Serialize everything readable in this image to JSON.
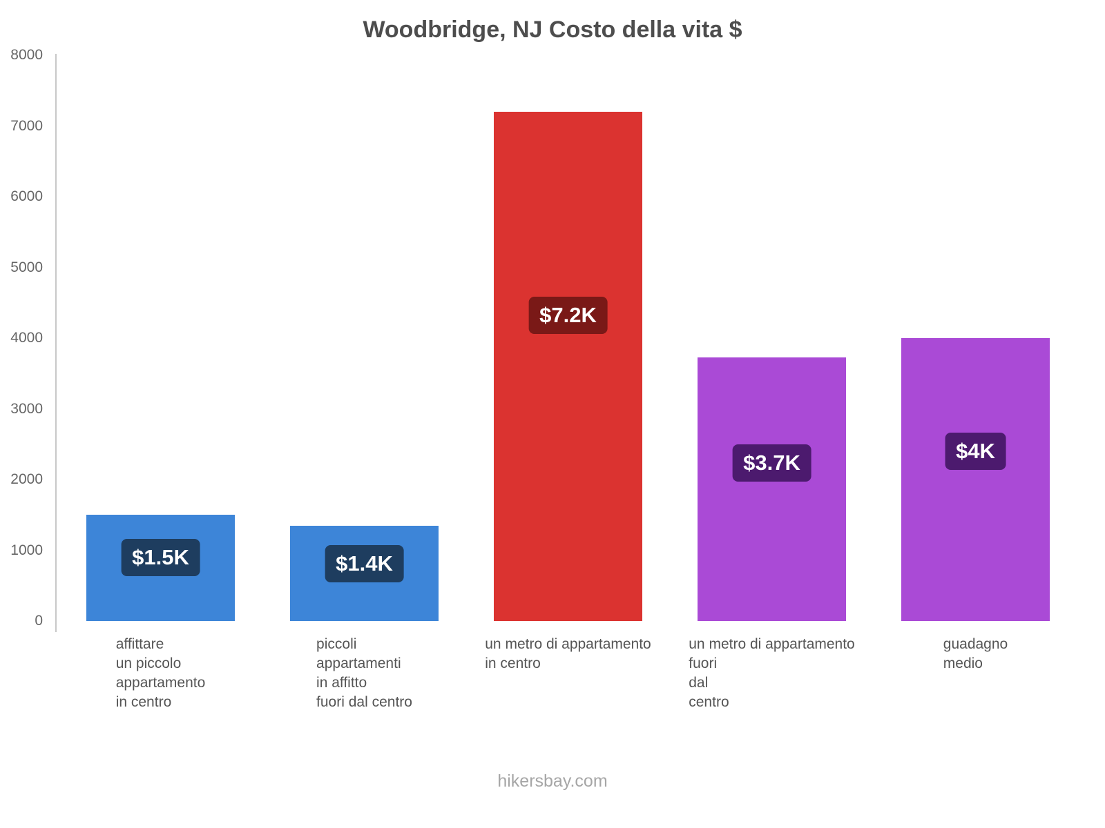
{
  "title": "Woodbridge, NJ Costo della vita $",
  "footer": "hikersbay.com",
  "chart_data": {
    "type": "bar",
    "title": "Woodbridge, NJ Costo della vita $",
    "xlabel": "",
    "ylabel": "",
    "ylim": [
      0,
      8000
    ],
    "yticks": [
      0,
      1000,
      2000,
      3000,
      4000,
      5000,
      6000,
      7000,
      8000
    ],
    "grid": false,
    "legend": false,
    "categories": [
      [
        "affittare",
        "un piccolo",
        "appartamento",
        "in centro"
      ],
      [
        "piccoli",
        "appartamenti",
        "in affitto",
        "fuori dal centro"
      ],
      [
        "un metro di appartamento",
        "in centro"
      ],
      [
        "un metro di appartamento",
        "fuori",
        "dal",
        "centro"
      ],
      [
        "guadagno",
        "medio"
      ]
    ],
    "values": [
      1500,
      1350,
      7200,
      3730,
      4000
    ],
    "value_labels": [
      "$1.5K",
      "$1.4K",
      "$7.2K",
      "$3.7K",
      "$4K"
    ],
    "bar_colors": [
      "#3d85d8",
      "#3d85d8",
      "#db3330",
      "#aa4ad6",
      "#aa4ad6"
    ],
    "label_bg_colors": [
      "#1e3d5f",
      "#1e3d5f",
      "#7a1917",
      "#4c1a6e",
      "#4c1a6e"
    ],
    "currency": "$",
    "source": "hikersbay.com"
  }
}
